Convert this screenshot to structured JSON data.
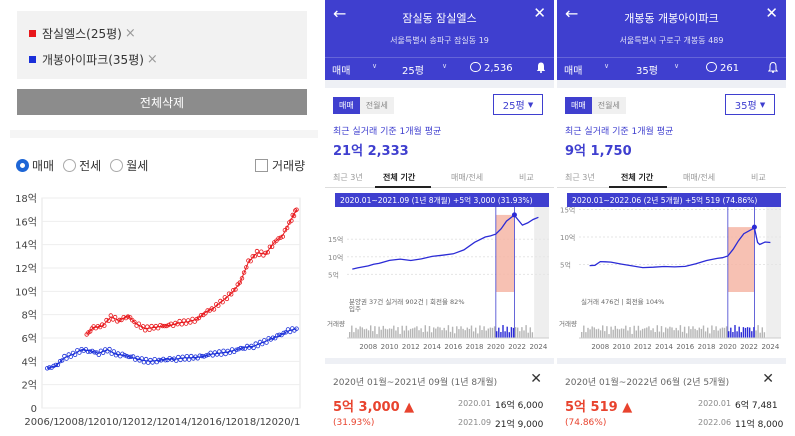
{
  "left": {
    "compare": [
      {
        "label": "잠실엘스(25평)",
        "color": "#e8171b"
      },
      {
        "label": "개봉아이파크(35평)",
        "color": "#1a2fd9"
      }
    ],
    "remove_icon": "×",
    "delete_all": "전체삭제",
    "radios": [
      "매매",
      "전세",
      "월세"
    ],
    "volume_label": "거래량",
    "chart_data": {
      "type": "scatter",
      "y_ticks": [
        "0",
        "2억",
        "4억",
        "6억",
        "8억",
        "10억",
        "12억",
        "14억",
        "16억",
        "18억"
      ],
      "x_ticks": [
        "2006/1",
        "2008/1",
        "2010/1",
        "2012/1",
        "2014/1",
        "2016/1",
        "2018/1",
        "2020/1"
      ],
      "ylim": [
        0,
        18
      ],
      "xlim": [
        2006,
        2021
      ],
      "series": [
        {
          "name": "잠실엘스(25평)",
          "color": "#e8171b",
          "x": [
            2008.6,
            2009.0,
            2009.5,
            2010.0,
            2010.5,
            2011.0,
            2011.5,
            2012.0,
            2012.5,
            2013.0,
            2013.5,
            2014.0,
            2014.5,
            2015.0,
            2015.5,
            2016.0,
            2016.5,
            2017.0,
            2017.5,
            2018.0,
            2018.5,
            2019.0,
            2019.5,
            2020.0,
            2020.5,
            2020.8
          ],
          "y": [
            6.3,
            6.9,
            7.0,
            7.8,
            7.5,
            7.9,
            7.2,
            6.8,
            6.9,
            7.0,
            7.1,
            7.3,
            7.4,
            7.6,
            8.2,
            8.6,
            9.2,
            9.8,
            10.7,
            12.5,
            13.3,
            13.2,
            14.2,
            14.8,
            16.2,
            17.0
          ]
        },
        {
          "name": "개봉아이파크(35평)",
          "color": "#1a2fd9",
          "x": [
            2006.3,
            2006.8,
            2007.3,
            2007.8,
            2008.3,
            2008.8,
            2009.3,
            2009.8,
            2010.3,
            2010.8,
            2011.3,
            2011.8,
            2012.3,
            2012.8,
            2013.3,
            2013.8,
            2014.3,
            2014.8,
            2015.3,
            2015.8,
            2016.3,
            2016.8,
            2017.3,
            2017.8,
            2018.3,
            2018.8,
            2019.3,
            2019.8,
            2020.3,
            2020.8
          ],
          "y": [
            3.4,
            3.6,
            4.3,
            4.6,
            5.0,
            4.9,
            4.7,
            5.0,
            4.6,
            4.5,
            4.3,
            4.1,
            4.0,
            4.1,
            4.2,
            4.2,
            4.3,
            4.3,
            4.4,
            4.6,
            4.7,
            4.8,
            5.0,
            5.2,
            5.3,
            5.6,
            5.9,
            6.2,
            6.6,
            6.8
          ]
        }
      ]
    }
  },
  "panels": [
    {
      "id": "p1",
      "title": "잠실동 잠실엘스",
      "address": "서울특별시 송파구 잠실동 19",
      "deal_type": "매매",
      "size": "25평",
      "comments": "2,536",
      "seg_on": "매매",
      "seg_off": "전월세",
      "size_dropdown": "25평",
      "avg_label": "최근 실거래 기준 1개월 평균",
      "avg_value": "21억 2,333",
      "tabs": [
        "최근 3년",
        "전체 기간",
        "매매/전세",
        "비교"
      ],
      "tooltip": "2020.01~2021.09 (1년 8개월) +5억 3,000 (31.93%)",
      "chart_labels": [
        "15억",
        "10억",
        "5억"
      ],
      "notes": "분양권 37건 실거래 902건 | 회전율 82%",
      "note_sub": "입주",
      "volume_label": "거래량",
      "years": [
        "2008",
        "2010",
        "2012",
        "2014",
        "2016",
        "2018",
        "2020",
        "2022",
        "2024"
      ],
      "period": "2020년 01월~2021년 09월 (1년 8개월)",
      "change_value": "5억 3,000 ▲",
      "change_pct": "(31.93%)",
      "from_date": "2020.01",
      "from_price": "16억 6,000",
      "to_date": "2021.09",
      "to_price": "21억 9,000",
      "chart_data": {
        "type": "line",
        "xlim": [
          2006,
          2025
        ],
        "ylim": [
          0,
          25
        ],
        "highlight_x": [
          2020.0,
          2021.75
        ],
        "x": [
          2006.5,
          2007,
          2008,
          2008.5,
          2009,
          2010,
          2011,
          2012,
          2013,
          2014,
          2015,
          2016,
          2017,
          2018,
          2019,
          2019.5,
          2020,
          2020.5,
          2021,
          2021.5,
          2021.75,
          2022,
          2022.5,
          2023,
          2023.5,
          2024
        ],
        "y": [
          6.5,
          7,
          7.5,
          7.8,
          8.0,
          9.0,
          9.5,
          9.0,
          9.3,
          10.0,
          10.5,
          11.0,
          12.0,
          14.0,
          15.5,
          16.0,
          16.6,
          18.0,
          20.0,
          21.2,
          21.9,
          21.0,
          19.0,
          19.5,
          20.5,
          21.3
        ]
      }
    },
    {
      "id": "p2",
      "title": "개봉동 개봉아이파크",
      "address": "서울특별시 구로구 개봉동 489",
      "deal_type": "매매",
      "size": "35평",
      "comments": "261",
      "seg_on": "매매",
      "seg_off": "전월세",
      "size_dropdown": "35평",
      "avg_label": "최근 실거래 기준 1개월 평균",
      "avg_value": "9억 1,750",
      "tabs": [
        "최근 3년",
        "전체 기간",
        "매매/전세",
        "비교"
      ],
      "tooltip": "2020.01~2022.06 (2년 5개월) +5억 519 (74.86%)",
      "chart_labels": [
        "15억",
        "10억",
        "5억"
      ],
      "notes": "실거래 476건 | 회전율 104%",
      "note_sub": "",
      "volume_label": "거래량",
      "years": [
        "2008",
        "2010",
        "2012",
        "2014",
        "2016",
        "2018",
        "2020",
        "2022",
        "2024"
      ],
      "period": "2020년 01월~2022년 06월 (2년 5개월)",
      "change_value": "5억 519 ▲",
      "change_pct": "(74.86%)",
      "from_date": "2020.01",
      "from_price": "6억 7,481",
      "to_date": "2022.06",
      "to_price": "11억 8,000",
      "chart_data": {
        "type": "line",
        "xlim": [
          2006,
          2025
        ],
        "ylim": [
          0,
          16
        ],
        "highlight_x": [
          2020.0,
          2022.5
        ],
        "x": [
          2007,
          2007.5,
          2008,
          2008.5,
          2009,
          2010,
          2011,
          2012,
          2013,
          2014,
          2015,
          2016,
          2017,
          2018,
          2019,
          2019.5,
          2020,
          2020.5,
          2021,
          2021.5,
          2022,
          2022.5,
          2022.8,
          2023,
          2023.5,
          2024
        ],
        "y": [
          4.8,
          5.0,
          5.6,
          5.4,
          5.3,
          5.1,
          4.9,
          4.5,
          4.4,
          4.5,
          4.6,
          4.8,
          5.2,
          5.6,
          6.0,
          6.3,
          6.7,
          7.8,
          9.2,
          10.5,
          11.2,
          11.8,
          9.0,
          8.5,
          9.0,
          9.1
        ]
      }
    }
  ]
}
